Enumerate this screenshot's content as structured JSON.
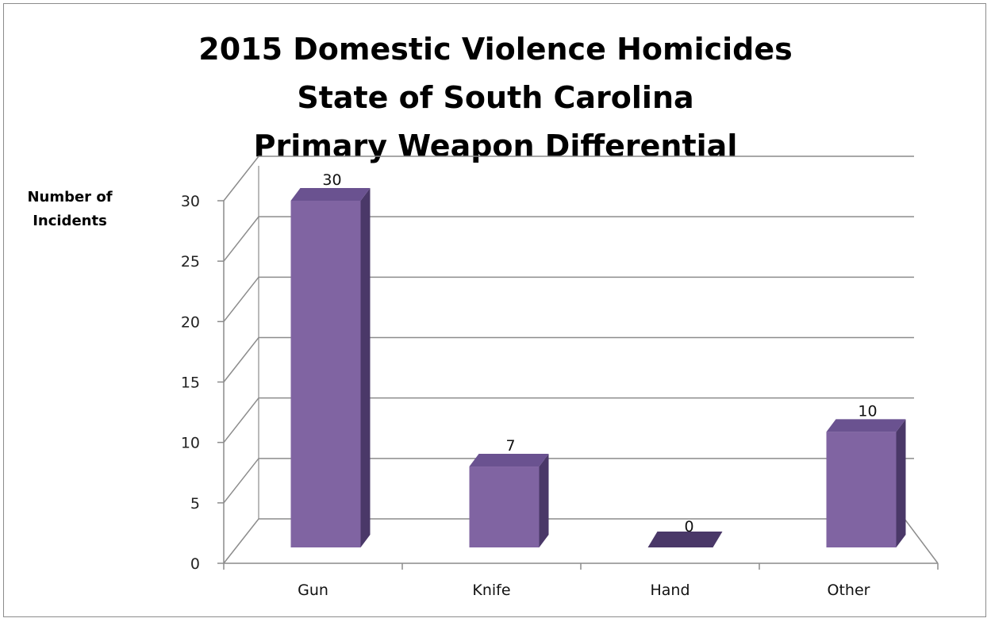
{
  "chart_data": {
    "type": "bar",
    "title_lines": [
      "2015 Domestic Violence Homicides",
      "State of South Carolina",
      "Primary Weapon Differential"
    ],
    "ylabel_lines": [
      "Number of",
      "Incidents"
    ],
    "xlabel": "",
    "categories": [
      "Gun",
      "Knife",
      "Hand",
      "Other"
    ],
    "values": [
      30,
      7,
      0,
      10
    ],
    "data_labels": [
      "30",
      "7",
      "0",
      "10"
    ],
    "yticks": [
      0,
      5,
      10,
      15,
      20,
      25,
      30
    ],
    "ylim": [
      0,
      30
    ],
    "grid": true,
    "legend": "none",
    "style": "3d-column",
    "colors": {
      "bar_front": "#8064a2",
      "bar_side": "#4a3868",
      "bar_top": "#6a5290",
      "grid": "#8c8c8c",
      "axis": "#8c8c8c"
    }
  }
}
